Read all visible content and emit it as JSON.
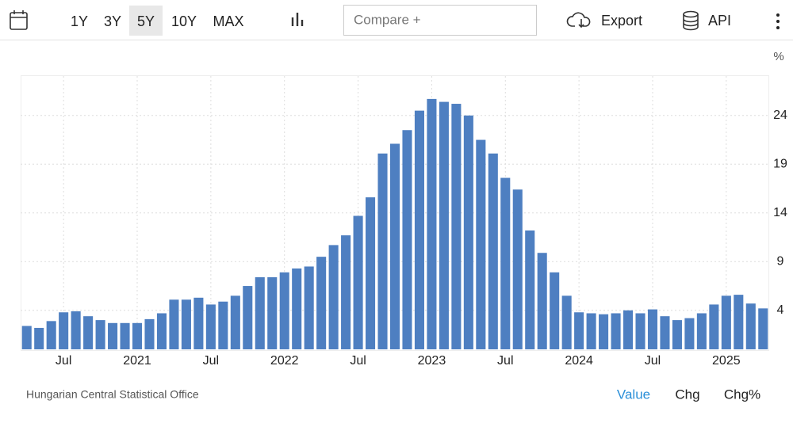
{
  "toolbar": {
    "ranges": [
      "1Y",
      "3Y",
      "5Y",
      "10Y",
      "MAX"
    ],
    "selected_range": "5Y",
    "compare": "Compare +",
    "export": "Export",
    "api": "API"
  },
  "footer": {
    "source": "Hungarian Central Statistical Office",
    "views": [
      "Value",
      "Chg",
      "Chg%"
    ],
    "selected_view": "Value"
  },
  "chart_data": {
    "type": "bar",
    "ylabel": "%",
    "categories": [
      null,
      null,
      null,
      "Jul",
      null,
      null,
      null,
      null,
      null,
      "2021",
      null,
      null,
      null,
      null,
      null,
      "Jul",
      null,
      null,
      null,
      null,
      null,
      "2022",
      null,
      null,
      null,
      null,
      null,
      "Jul",
      null,
      null,
      null,
      null,
      null,
      "2023",
      null,
      null,
      null,
      null,
      null,
      "Jul",
      null,
      null,
      null,
      null,
      null,
      "2024",
      null,
      null,
      null,
      null,
      null,
      "Jul",
      null,
      null,
      null,
      null,
      null,
      "2025",
      null,
      null,
      null
    ],
    "values": [
      2.4,
      2.2,
      2.9,
      3.8,
      3.9,
      3.4,
      3.0,
      2.7,
      2.7,
      2.7,
      3.1,
      3.7,
      5.1,
      5.1,
      5.3,
      4.6,
      4.9,
      5.5,
      6.5,
      7.4,
      7.4,
      7.9,
      8.3,
      8.5,
      9.5,
      10.7,
      11.7,
      13.7,
      15.6,
      20.1,
      21.1,
      22.5,
      24.5,
      25.7,
      25.4,
      25.2,
      24.0,
      21.5,
      20.1,
      17.6,
      16.4,
      12.2,
      9.9,
      7.9,
      5.5,
      3.8,
      3.7,
      3.6,
      3.7,
      4.0,
      3.7,
      4.1,
      3.4,
      3.0,
      3.2,
      3.7,
      4.6,
      5.5,
      5.6,
      4.7,
      4.2
    ],
    "color": "#4e7fc1",
    "ylim": [
      0,
      28
    ],
    "yticks": [
      4,
      9,
      14,
      19,
      24
    ],
    "grid": true
  }
}
